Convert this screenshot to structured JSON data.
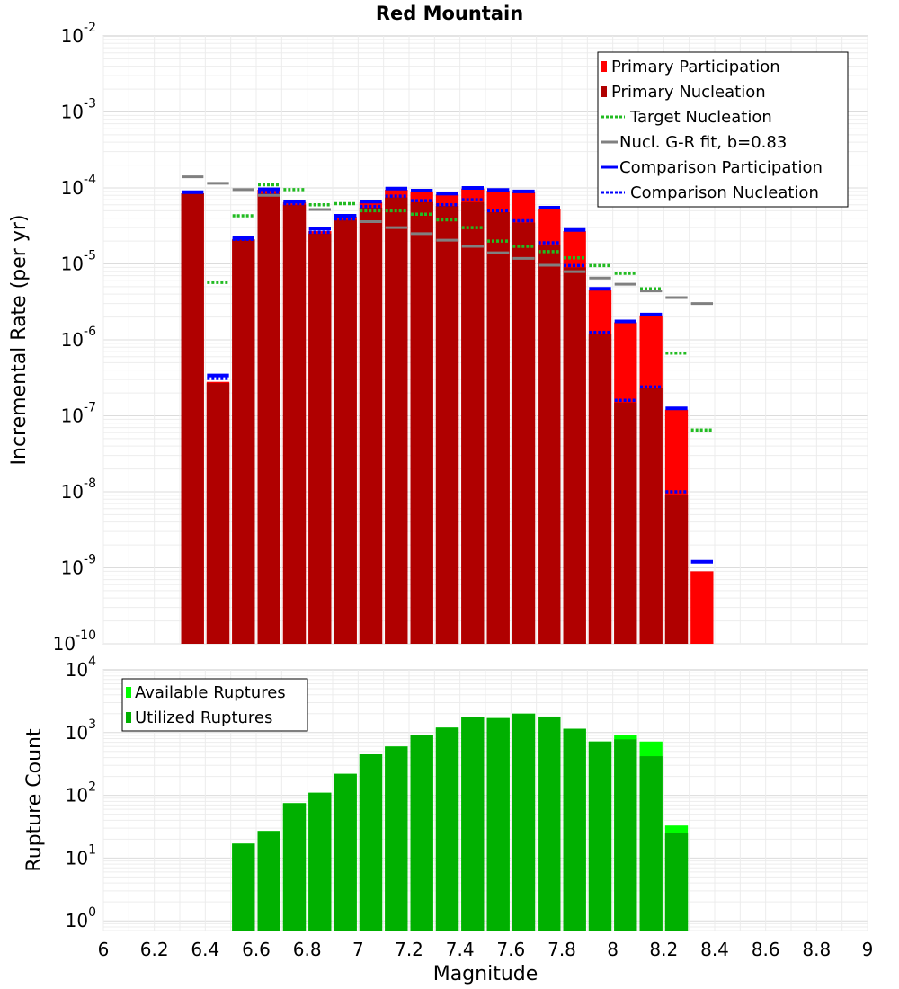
{
  "chart_data": [
    {
      "type": "bar",
      "title": "Red Mountain",
      "ylabel": "Incremental Rate (per yr)",
      "xlim": [
        6,
        9
      ],
      "ylim": [
        1e-10,
        0.01
      ],
      "yscale": "log",
      "bin_width": 0.1,
      "grid": true,
      "legend_position": "top-right",
      "y_tick_bases": [
        "10",
        "10",
        "10",
        "10",
        "10",
        "10",
        "10",
        "10",
        "10"
      ],
      "y_tick_exponents": [
        "-10",
        "-9",
        "-8",
        "-7",
        "-6",
        "-5",
        "-4",
        "-3",
        "-2"
      ],
      "legend": [
        {
          "label": "Primary Participation",
          "style": "box",
          "color": "#ff0000"
        },
        {
          "label": "Primary Nucleation",
          "style": "box",
          "color": "#b00000"
        },
        {
          "label": "Target Nucleation",
          "style": "dot",
          "color": "#22bb22"
        },
        {
          "label": "Nucl. G-R fit, b=0.83",
          "style": "line",
          "color": "#808080"
        },
        {
          "label": "Comparison Participation",
          "style": "line",
          "color": "#0000ff"
        },
        {
          "label": "Comparison Nucleation",
          "style": "dot",
          "color": "#0000ff"
        }
      ],
      "x": [
        6.35,
        6.45,
        6.55,
        6.65,
        6.75,
        6.85,
        6.95,
        7.05,
        7.15,
        7.25,
        7.35,
        7.45,
        7.55,
        7.65,
        7.75,
        7.85,
        7.95,
        8.05,
        8.15,
        8.25,
        8.35
      ],
      "series": [
        {
          "name": "Primary Participation",
          "color": "#ff0000",
          "values": [
            8.5e-05,
            2.8e-07,
            2.1e-05,
            9.5e-05,
            6.5e-05,
            2.7e-05,
            4.2e-05,
            6.5e-05,
            9.5e-05,
            9e-05,
            8.2e-05,
            9.8e-05,
            9.2e-05,
            8.8e-05,
            5.3e-05,
            2.7e-05,
            4.6e-06,
            1.7e-06,
            2.1e-06,
            1.2e-07,
            9e-10
          ]
        },
        {
          "name": "Primary Nucleation",
          "color": "#b00000",
          "values": [
            8.5e-05,
            2.7e-07,
            2.1e-05,
            8.5e-05,
            6e-05,
            2.5e-05,
            3.8e-05,
            5.5e-05,
            7.5e-05,
            6.5e-05,
            5.8e-05,
            6.5e-05,
            4.8e-05,
            3.5e-05,
            1.8e-05,
            9e-06,
            1.2e-06,
            1.5e-07,
            2.3e-07,
            9e-09,
            null
          ]
        },
        {
          "name": "Target Nucleation",
          "color": "#22bb22",
          "values": [
            null,
            5.7e-06,
            4.3e-05,
            0.00011,
            9.5e-05,
            6e-05,
            6.2e-05,
            5e-05,
            5e-05,
            4.5e-05,
            3.8e-05,
            3e-05,
            2e-05,
            1.7e-05,
            1.45e-05,
            1.2e-05,
            9.5e-06,
            7.5e-06,
            4.7e-06,
            6.7e-07,
            6.5e-08
          ]
        },
        {
          "name": "Nucl. G-R fit, b=0.83",
          "color": "#808080",
          "values": [
            0.00014,
            0.000115,
            9.5e-05,
            8e-05,
            6.5e-05,
            5.2e-05,
            4.3e-05,
            3.6e-05,
            3e-05,
            2.5e-05,
            2.05e-05,
            1.7e-05,
            1.4e-05,
            1.18e-05,
            9.6e-06,
            7.9e-06,
            6.5e-06,
            5.4e-06,
            4.4e-06,
            3.6e-06,
            3e-06
          ]
        },
        {
          "name": "Comparison Participation",
          "color": "#0000ff",
          "values": [
            8.8e-05,
            3.4e-07,
            2.2e-05,
            9.6e-05,
            6.6e-05,
            2.9e-05,
            4.3e-05,
            6.6e-05,
            9.8e-05,
            9.2e-05,
            8.4e-05,
            0.0001,
            9.4e-05,
            9e-05,
            5.5e-05,
            2.8e-05,
            4.7e-06,
            1.75e-06,
            2.15e-06,
            1.25e-07,
            1.2e-09
          ]
        },
        {
          "name": "Comparison Nucleation",
          "color": "#0000ff",
          "values": [
            8.8e-05,
            3.1e-07,
            2.1e-05,
            8.8e-05,
            6.2e-05,
            2.6e-05,
            3.9e-05,
            5.7e-05,
            7.8e-05,
            6.8e-05,
            6e-05,
            7e-05,
            5e-05,
            3.7e-05,
            1.9e-05,
            9.5e-06,
            1.25e-06,
            1.6e-07,
            2.4e-07,
            1e-08,
            null
          ]
        }
      ]
    },
    {
      "type": "bar",
      "xlabel": "Magnitude",
      "ylabel": "Rupture Count",
      "xlim": [
        6,
        9
      ],
      "ylim": [
        0.7,
        10000
      ],
      "yscale": "log",
      "bin_width": 0.1,
      "grid": true,
      "legend_position": "top-left",
      "x_ticks": [
        "6",
        "6.2",
        "6.4",
        "6.6",
        "6.8",
        "7",
        "7.2",
        "7.4",
        "7.6",
        "7.8",
        "8",
        "8.2",
        "8.4",
        "8.6",
        "8.8",
        "9"
      ],
      "y_tick_bases": [
        "10",
        "10",
        "10",
        "10",
        "10"
      ],
      "y_tick_exponents": [
        "0",
        "1",
        "2",
        "3",
        "4"
      ],
      "legend": [
        {
          "label": "Available Ruptures",
          "color": "#00ff00"
        },
        {
          "label": "Utilized Ruptures",
          "color": "#00b000"
        }
      ],
      "x": [
        6.55,
        6.65,
        6.75,
        6.85,
        6.95,
        7.05,
        7.15,
        7.25,
        7.35,
        7.45,
        7.55,
        7.65,
        7.75,
        7.85,
        7.95,
        8.05,
        8.15,
        8.25
      ],
      "series": [
        {
          "name": "Available Ruptures",
          "color": "#00ff00",
          "values": [
            17,
            27,
            75,
            110,
            220,
            450,
            600,
            900,
            1200,
            1750,
            1700,
            2000,
            1800,
            1150,
            720,
            900,
            720,
            33
          ]
        },
        {
          "name": "Utilized Ruptures",
          "color": "#00b000",
          "values": [
            17,
            27,
            75,
            110,
            220,
            450,
            600,
            900,
            1200,
            1750,
            1700,
            2000,
            1800,
            1150,
            720,
            780,
            420,
            25
          ]
        }
      ]
    }
  ]
}
